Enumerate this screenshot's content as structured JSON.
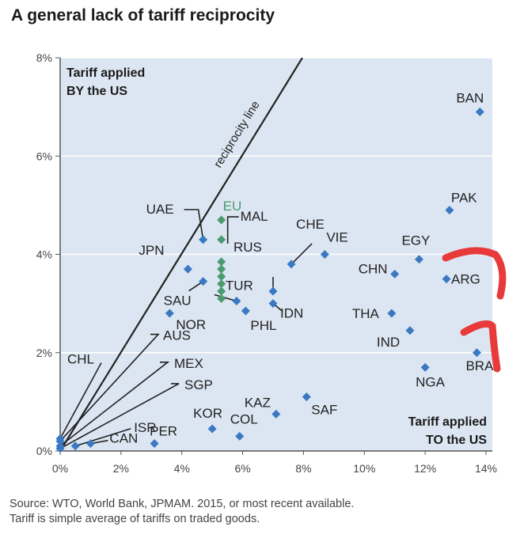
{
  "title": "A general lack of tariff reciprocity",
  "source_lines": [
    "Source: WTO, World Bank, JPMAM. 2015, or most recent available.",
    "Tariff is simple average of tariffs on traded goods."
  ],
  "chart_data": {
    "type": "scatter",
    "title": "A general lack of tariff reciprocity",
    "xlabel": "Tariff applied TO the US",
    "ylabel": "Tariff applied BY the US",
    "xlim": [
      0,
      14
    ],
    "ylim": [
      0,
      8
    ],
    "x_ticks": [
      "0%",
      "2%",
      "4%",
      "6%",
      "8%",
      "10%",
      "12%",
      "14%"
    ],
    "y_ticks": [
      "0%",
      "2%",
      "4%",
      "6%",
      "8%"
    ],
    "ylabel_lines": [
      "Tariff applied",
      "BY the US"
    ],
    "xlabel_lines": [
      "Tariff applied",
      "TO the US"
    ],
    "reference_line": {
      "label": "reciprocity line",
      "from": [
        0,
        0
      ],
      "to": [
        8,
        8
      ]
    },
    "colors": {
      "points": "#3a78c2",
      "eu": "#4a9b6f",
      "background": "#dce6f2",
      "grid": "#ffffff",
      "annotation": "#e83a3a"
    },
    "points": [
      {
        "label": "BAN",
        "x": 13.8,
        "y": 6.9
      },
      {
        "label": "PAK",
        "x": 12.8,
        "y": 4.9
      },
      {
        "label": "EGY",
        "x": 11.8,
        "y": 3.9
      },
      {
        "label": "CHN",
        "x": 11.0,
        "y": 3.6
      },
      {
        "label": "ARG",
        "x": 12.7,
        "y": 3.5
      },
      {
        "label": "THA",
        "x": 10.9,
        "y": 2.8
      },
      {
        "label": "IND",
        "x": 11.5,
        "y": 2.45
      },
      {
        "label": "BRA",
        "x": 13.7,
        "y": 2.0
      },
      {
        "label": "NGA",
        "x": 12.0,
        "y": 1.7
      },
      {
        "label": "SAF",
        "x": 8.1,
        "y": 1.1
      },
      {
        "label": "KAZ",
        "x": 7.1,
        "y": 0.75
      },
      {
        "label": "COL",
        "x": 5.9,
        "y": 0.3
      },
      {
        "label": "KOR",
        "x": 5.0,
        "y": 0.45
      },
      {
        "label": "PER",
        "x": 3.1,
        "y": 0.15
      },
      {
        "label": "CAN",
        "x": 1.0,
        "y": 0.15
      },
      {
        "label": "ISR",
        "x": 0.5,
        "y": 0.1
      },
      {
        "label": "SGP",
        "x": 0.0,
        "y": 0.05
      },
      {
        "label": "MEX",
        "x": 0.0,
        "y": 0.1
      },
      {
        "label": "AUS",
        "x": 0.0,
        "y": 0.2
      },
      {
        "label": "CHL",
        "x": 0.0,
        "y": 0.25
      },
      {
        "label": "UAE",
        "x": 4.7,
        "y": 4.3
      },
      {
        "label": "JPN",
        "x": 4.2,
        "y": 3.7
      },
      {
        "label": "SAU",
        "x": 4.7,
        "y": 3.45
      },
      {
        "label": "NOR",
        "x": 3.6,
        "y": 2.8
      },
      {
        "label": "TUR",
        "x": 5.8,
        "y": 3.05
      },
      {
        "label": "PHL",
        "x": 6.1,
        "y": 2.85
      },
      {
        "label": "RUS",
        "x": 7.0,
        "y": 3.25
      },
      {
        "label": "IDN",
        "x": 7.0,
        "y": 3.0
      },
      {
        "label": "CHE",
        "x": 7.6,
        "y": 3.8
      },
      {
        "label": "VIE",
        "x": 8.7,
        "y": 4.0
      }
    ],
    "eu_points": [
      {
        "x": 5.3,
        "y": 4.7
      },
      {
        "x": 5.3,
        "y": 4.3
      },
      {
        "x": 5.3,
        "y": 3.85
      },
      {
        "x": 5.3,
        "y": 3.7
      },
      {
        "x": 5.3,
        "y": 3.55
      },
      {
        "x": 5.3,
        "y": 3.4
      },
      {
        "x": 5.3,
        "y": 3.25
      },
      {
        "x": 5.3,
        "y": 3.1
      }
    ],
    "eu_label": "EU",
    "mal_label": "MAL"
  }
}
